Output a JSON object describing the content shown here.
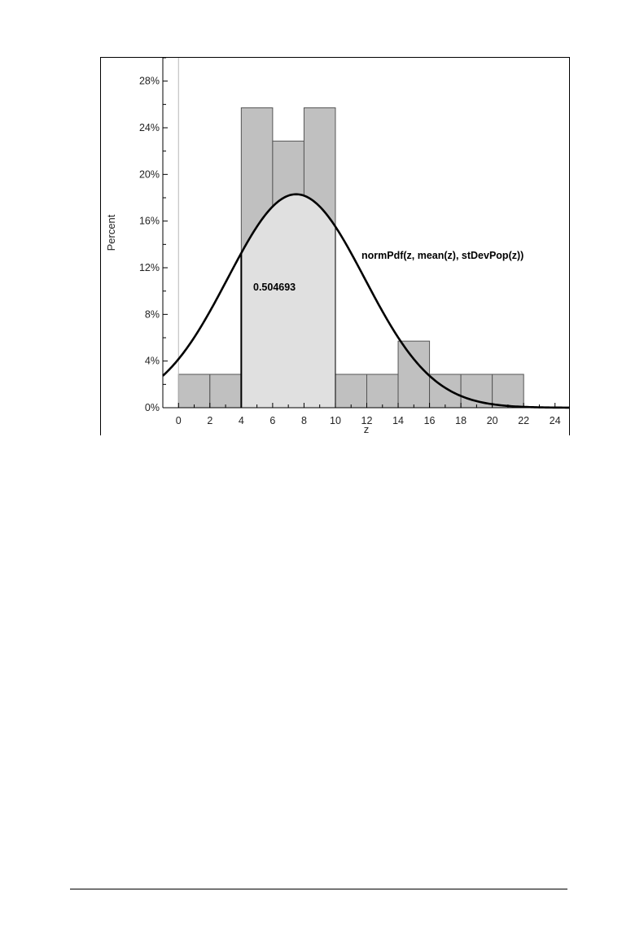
{
  "chart_data": {
    "type": "bar",
    "title": "",
    "xlabel": "z",
    "ylabel": "Percent",
    "xlim": [
      -1,
      25
    ],
    "ylim": [
      0,
      30
    ],
    "x_ticks": [
      0,
      2,
      4,
      6,
      8,
      10,
      12,
      14,
      16,
      18,
      20,
      22,
      24
    ],
    "x_tick_labels": [
      "0",
      "2",
      "4",
      "6",
      "8",
      "10",
      "12",
      "14",
      "16",
      "18",
      "20",
      "22",
      "24"
    ],
    "y_ticks": [
      0,
      4,
      8,
      12,
      16,
      20,
      24,
      28
    ],
    "y_tick_labels": [
      "0%",
      "4%",
      "8%",
      "12%",
      "16%",
      "20%",
      "24%",
      "28%"
    ],
    "bin_width": 2,
    "bins": [
      {
        "start": 0,
        "end": 2,
        "percent": 2.86
      },
      {
        "start": 2,
        "end": 4,
        "percent": 2.86
      },
      {
        "start": 4,
        "end": 6,
        "percent": 25.71
      },
      {
        "start": 6,
        "end": 8,
        "percent": 22.86
      },
      {
        "start": 8,
        "end": 10,
        "percent": 25.71
      },
      {
        "start": 10,
        "end": 12,
        "percent": 2.86
      },
      {
        "start": 12,
        "end": 14,
        "percent": 2.86
      },
      {
        "start": 14,
        "end": 16,
        "percent": 5.71
      },
      {
        "start": 16,
        "end": 18,
        "percent": 2.86
      },
      {
        "start": 18,
        "end": 20,
        "percent": 2.86
      },
      {
        "start": 20,
        "end": 22,
        "percent": 2.86
      }
    ],
    "curve": {
      "label": "normPdf(z, mean(z), stDevPop(z))",
      "mean": 7.5,
      "peak_percent": 18.3
    },
    "shaded_region": {
      "from": 4,
      "to": 10,
      "area_label": "0.504693"
    },
    "grid": false,
    "colors": {
      "bar_fill": "#c0c0c0",
      "bar_stroke": "#555555",
      "shade_fill": "#e0e0e0",
      "curve": "#000000"
    }
  }
}
